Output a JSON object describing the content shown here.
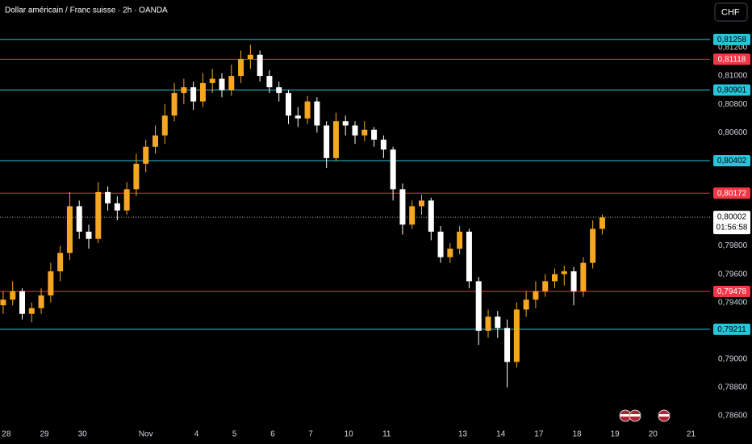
{
  "chart_data": {
    "type": "candlestick",
    "title": "Dollar américain / Franc suisse · 2h · OANDA",
    "currency_button": "CHF",
    "up_color": "#f5a623",
    "down_color": "#ffffff",
    "xlim": [
      -2,
      222
    ],
    "ylim": [
      0.784004,
      0.815364
    ],
    "xticks": [
      {
        "value": 0,
        "label": "28"
      },
      {
        "value": 12,
        "label": "29"
      },
      {
        "value": 24,
        "label": "30"
      },
      {
        "value": 44,
        "label": "Nov"
      },
      {
        "value": 60,
        "label": "4"
      },
      {
        "value": 72,
        "label": "5"
      },
      {
        "value": 84,
        "label": "6"
      },
      {
        "value": 96,
        "label": "7"
      },
      {
        "value": 108,
        "label": "10"
      },
      {
        "value": 120,
        "label": "11"
      },
      {
        "value": 144,
        "label": "13"
      },
      {
        "value": 156,
        "label": "14"
      },
      {
        "value": 168,
        "label": "17"
      },
      {
        "value": 180,
        "label": "18"
      },
      {
        "value": 192,
        "label": "19"
      },
      {
        "value": 204,
        "label": "20"
      },
      {
        "value": 216,
        "label": "21"
      }
    ],
    "yticks": [
      {
        "value": 0.812,
        "label": "0,81200"
      },
      {
        "value": 0.81,
        "label": "0,81000"
      },
      {
        "value": 0.808,
        "label": "0,80800"
      },
      {
        "value": 0.806,
        "label": "0,80600"
      },
      {
        "value": 0.798,
        "label": "0,79800"
      },
      {
        "value": 0.796,
        "label": "0,79600"
      },
      {
        "value": 0.794,
        "label": "0,79400"
      },
      {
        "value": 0.79,
        "label": "0,79000"
      },
      {
        "value": 0.788,
        "label": "0,78800"
      },
      {
        "value": 0.786,
        "label": "0,78600"
      }
    ],
    "levels": [
      {
        "value": 0.81258,
        "label": "0,81258",
        "color": "#26c6da"
      },
      {
        "value": 0.81118,
        "label": "0,81118",
        "color": "#f23645"
      },
      {
        "value": 0.80901,
        "label": "0,80901",
        "color": "#26c6da"
      },
      {
        "value": 0.80402,
        "label": "0,80402",
        "color": "#26c6da"
      },
      {
        "value": 0.80172,
        "label": "0,80172",
        "color": "#f23645"
      },
      {
        "value": 0.79478,
        "label": "0,79478",
        "color": "#f23645"
      },
      {
        "value": 0.79211,
        "label": "0,79211",
        "color": "#26c6da"
      }
    ],
    "last_price": {
      "value": 0.80002,
      "label": "0,80002",
      "countdown": "01:56:58"
    },
    "x": [
      -1,
      2,
      5,
      8,
      11,
      14,
      17,
      20,
      23,
      26,
      29,
      32,
      35,
      38,
      41,
      44,
      47,
      50,
      53,
      56,
      59,
      62,
      65,
      68,
      71,
      74,
      77,
      80,
      83,
      86,
      89,
      92,
      95,
      98,
      101,
      104,
      107,
      110,
      113,
      116,
      119,
      122,
      125,
      128,
      131,
      134,
      137,
      140,
      143,
      146,
      149,
      152,
      155,
      158,
      161,
      164,
      167,
      170,
      173,
      176,
      179,
      182,
      185,
      188
    ],
    "ohlc": [
      [
        0.7938,
        0.7948,
        0.7932,
        0.7942
      ],
      [
        0.7942,
        0.7955,
        0.7938,
        0.7948
      ],
      [
        0.7948,
        0.795,
        0.7928,
        0.7932
      ],
      [
        0.7932,
        0.794,
        0.7926,
        0.7936
      ],
      [
        0.7936,
        0.795,
        0.7932,
        0.7945
      ],
      [
        0.7945,
        0.7968,
        0.794,
        0.7962
      ],
      [
        0.7962,
        0.798,
        0.7955,
        0.7975
      ],
      [
        0.7975,
        0.8018,
        0.797,
        0.8008
      ],
      [
        0.8008,
        0.8012,
        0.7985,
        0.799
      ],
      [
        0.799,
        0.7995,
        0.7978,
        0.7985
      ],
      [
        0.7985,
        0.8025,
        0.7982,
        0.8018
      ],
      [
        0.8018,
        0.8022,
        0.8005,
        0.801
      ],
      [
        0.801,
        0.8015,
        0.7998,
        0.8005
      ],
      [
        0.8005,
        0.8025,
        0.8002,
        0.802
      ],
      [
        0.802,
        0.8045,
        0.8015,
        0.8038
      ],
      [
        0.8038,
        0.8055,
        0.8032,
        0.805
      ],
      [
        0.805,
        0.8065,
        0.8045,
        0.8058
      ],
      [
        0.8058,
        0.808,
        0.8052,
        0.8072
      ],
      [
        0.8072,
        0.8095,
        0.8068,
        0.8088
      ],
      [
        0.8088,
        0.8098,
        0.808,
        0.8092
      ],
      [
        0.8092,
        0.8096,
        0.8076,
        0.8082
      ],
      [
        0.8082,
        0.8102,
        0.8078,
        0.8095
      ],
      [
        0.8095,
        0.8105,
        0.8088,
        0.8098
      ],
      [
        0.8098,
        0.8102,
        0.8085,
        0.809
      ],
      [
        0.809,
        0.8108,
        0.8086,
        0.81
      ],
      [
        0.81,
        0.8118,
        0.8095,
        0.8112
      ],
      [
        0.8112,
        0.8122,
        0.8105,
        0.8115
      ],
      [
        0.8115,
        0.8118,
        0.8096,
        0.81
      ],
      [
        0.81,
        0.8104,
        0.8088,
        0.8092
      ],
      [
        0.8092,
        0.8096,
        0.8082,
        0.8088
      ],
      [
        0.8088,
        0.809,
        0.8066,
        0.8072
      ],
      [
        0.8072,
        0.8078,
        0.8064,
        0.807
      ],
      [
        0.807,
        0.8086,
        0.8066,
        0.8082
      ],
      [
        0.8082,
        0.8085,
        0.806,
        0.8065
      ],
      [
        0.8065,
        0.8068,
        0.8035,
        0.8042
      ],
      [
        0.8042,
        0.8074,
        0.804,
        0.8068
      ],
      [
        0.8068,
        0.8072,
        0.8058,
        0.8065
      ],
      [
        0.8065,
        0.8068,
        0.8052,
        0.8058
      ],
      [
        0.8058,
        0.8068,
        0.8054,
        0.8062
      ],
      [
        0.8062,
        0.8064,
        0.805,
        0.8055
      ],
      [
        0.8055,
        0.8058,
        0.8042,
        0.8048
      ],
      [
        0.8048,
        0.805,
        0.8012,
        0.802
      ],
      [
        0.802,
        0.8024,
        0.7988,
        0.7995
      ],
      [
        0.7995,
        0.8012,
        0.7992,
        0.8008
      ],
      [
        0.8008,
        0.8016,
        0.8002,
        0.8012
      ],
      [
        0.8012,
        0.8014,
        0.7984,
        0.799
      ],
      [
        0.799,
        0.7994,
        0.7968,
        0.7972
      ],
      [
        0.7972,
        0.7982,
        0.7968,
        0.7978
      ],
      [
        0.7978,
        0.7994,
        0.7974,
        0.799
      ],
      [
        0.799,
        0.7992,
        0.795,
        0.7955
      ],
      [
        0.7955,
        0.7958,
        0.791,
        0.792
      ],
      [
        0.792,
        0.7935,
        0.7915,
        0.793
      ],
      [
        0.793,
        0.7934,
        0.7915,
        0.7922
      ],
      [
        0.7922,
        0.7928,
        0.788,
        0.7898
      ],
      [
        0.7898,
        0.794,
        0.7894,
        0.7935
      ],
      [
        0.7935,
        0.7948,
        0.793,
        0.7942
      ],
      [
        0.7942,
        0.7955,
        0.7936,
        0.7948
      ],
      [
        0.7948,
        0.796,
        0.7944,
        0.7955
      ],
      [
        0.7955,
        0.7964,
        0.795,
        0.796
      ],
      [
        0.796,
        0.7966,
        0.7952,
        0.7962
      ],
      [
        0.7962,
        0.7965,
        0.7938,
        0.7948
      ],
      [
        0.7948,
        0.7972,
        0.7944,
        0.7968
      ],
      [
        0.7968,
        0.7998,
        0.7964,
        0.7992
      ],
      [
        0.7992,
        0.8002,
        0.7988,
        0.8
      ]
    ]
  }
}
